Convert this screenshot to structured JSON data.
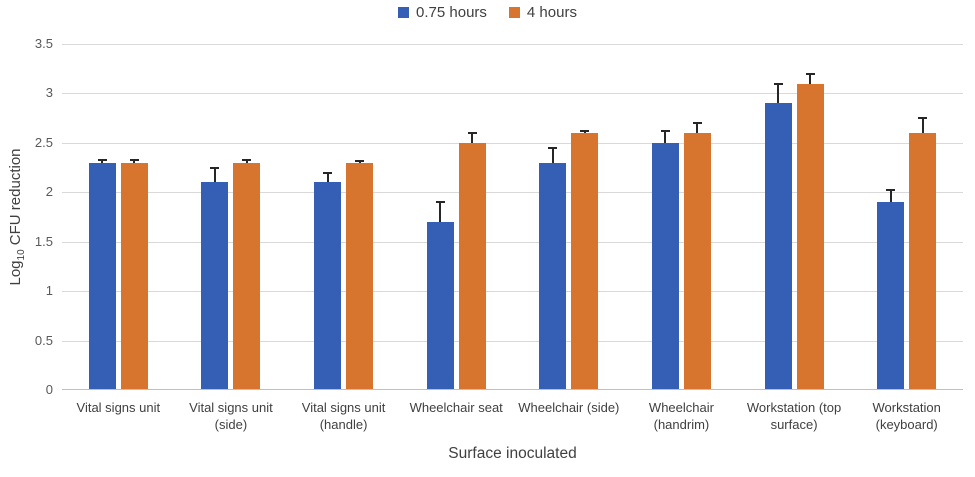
{
  "chart_data": {
    "type": "bar",
    "title": "",
    "xlabel": "Surface inoculated",
    "ylabel": "Log10 CFU reduction",
    "ylabel_parts": {
      "prefix": "Log",
      "subscript": "10",
      "suffix": " CFU reduction"
    },
    "categories": [
      "Vital signs unit",
      "Vital signs unit (side)",
      "Vital signs unit (handle)",
      "Wheelchair seat",
      "Wheelchair (side)",
      "Wheelchair (handrim)",
      "Workstation (top surface)",
      "Workstation (keyboard)"
    ],
    "series": [
      {
        "name": "0.75 hours",
        "color": "#355FB4",
        "values": [
          2.3,
          2.1,
          2.1,
          1.7,
          2.3,
          2.5,
          2.9,
          1.9
        ],
        "errors_plus": [
          0.03,
          0.15,
          0.1,
          0.2,
          0.15,
          0.12,
          0.2,
          0.12
        ]
      },
      {
        "name": "4 hours",
        "color": "#D7752F",
        "values": [
          2.3,
          2.3,
          2.3,
          2.5,
          2.6,
          2.6,
          3.1,
          2.6
        ],
        "errors_plus": [
          0.03,
          0.03,
          0.02,
          0.1,
          0.02,
          0.1,
          0.1,
          0.15
        ]
      }
    ],
    "ylim": [
      0,
      3.5
    ],
    "ytick_step": 0.5,
    "yticks": [
      "0",
      "0.5",
      "1",
      "1.5",
      "2",
      "2.5",
      "3",
      "3.5"
    ],
    "grid": true,
    "legend_position": "top",
    "colors": {
      "gridline": "#D9D9D9",
      "axis_line": "#BFBFBF",
      "error_bar": "#262626",
      "tick_text": "#595959",
      "label_text": "#404040"
    }
  }
}
